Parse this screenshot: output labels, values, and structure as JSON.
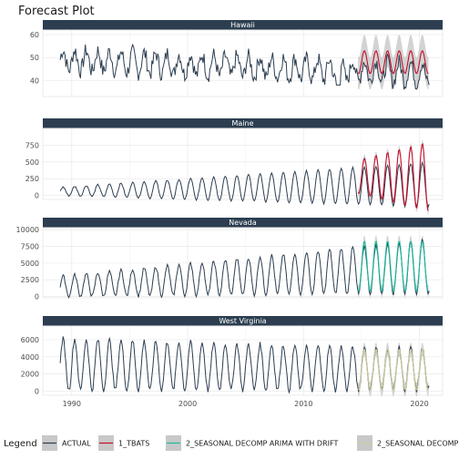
{
  "chart_data": {
    "type": "line",
    "title": "Forecast Plot",
    "colors": {
      "actual": "#2c3e50",
      "tbats": "#c40e2b",
      "arima": "#18bc9c",
      "decomp": "#cccc9a",
      "band": "#c8c8c8",
      "strip": "#2c3e50",
      "grid": "#e6e6e6"
    },
    "legend": {
      "title": "Legend",
      "position": "bottom",
      "items": [
        "ACTUAL",
        "1_TBATS",
        "2_SEASONAL DECOMP ARIMA WITH DRIFT",
        "2_SEASONAL DECOMP"
      ]
    },
    "x_ticks": [
      "1990",
      "2000",
      "2010",
      "2020"
    ],
    "x_tick_values": [
      1990,
      2000,
      2010,
      2020
    ],
    "xlim": [
      1987.5,
      2022
    ],
    "panels": [
      {
        "label": "Hawaii",
        "ylim": [
          33,
          62
        ],
        "y_ticks": [
          "40",
          "50",
          "60"
        ],
        "y_tick_values": [
          40,
          50,
          60
        ],
        "actual": {
          "start": 1989.0,
          "end": 2020.8,
          "base_start": 49,
          "base_end": 43,
          "amp": 4.5,
          "noise": 3.5,
          "dip_at": 2013.0,
          "dip": 38
        },
        "forecast": {
          "name": "1_TBATS",
          "start": 2014.7,
          "end": 2020.8,
          "base": 48,
          "amp": 5,
          "band": 7
        }
      },
      {
        "label": "Maine",
        "ylim": [
          -60,
          1000
        ],
        "y_ticks": [
          "0",
          "250",
          "500",
          "750"
        ],
        "y_tick_values": [
          0,
          250,
          500,
          750
        ],
        "actual": {
          "start": 1989.0,
          "end": 2020.8,
          "base_start": 60,
          "base_end": 160,
          "amp_start": 60,
          "amp_end": 330,
          "noise": 10
        },
        "forecast": {
          "name": "1_TBATS",
          "start": 2014.7,
          "end": 2020.8,
          "base": 280,
          "amp_start": 250,
          "amp_end": 520,
          "band": 60
        }
      },
      {
        "label": "Nevada",
        "ylim": [
          -200,
          10300
        ],
        "y_ticks": [
          "0",
          "2500",
          "5000",
          "7500",
          "10000"
        ],
        "y_tick_values": [
          0,
          2500,
          5000,
          7500,
          10000
        ],
        "actual": {
          "start": 1989.0,
          "end": 2020.8,
          "base_start": 1500,
          "base_end": 4500,
          "amp_start": 1500,
          "amp_end": 4000,
          "noise": 250
        },
        "forecast": {
          "name": "2_SEASONAL DECOMP ARIMA WITH DRIFT",
          "start": 2014.7,
          "end": 2020.8,
          "base": 4500,
          "amp": 3800,
          "band": 900
        }
      },
      {
        "label": "West Virginia",
        "ylim": [
          -500,
          7600
        ],
        "y_ticks": [
          "0",
          "2000",
          "4000",
          "6000"
        ],
        "y_tick_values": [
          0,
          2000,
          4000,
          6000
        ],
        "actual": {
          "start": 1989.0,
          "end": 2020.8,
          "base_start": 3100,
          "base_end": 2500,
          "amp_start": 3000,
          "amp_end": 2400,
          "noise": 300
        },
        "forecast": {
          "name": "2_SEASONAL DECOMP",
          "start": 2014.7,
          "end": 2020.8,
          "base": 2500,
          "amp": 2400,
          "band": 800
        }
      }
    ]
  }
}
